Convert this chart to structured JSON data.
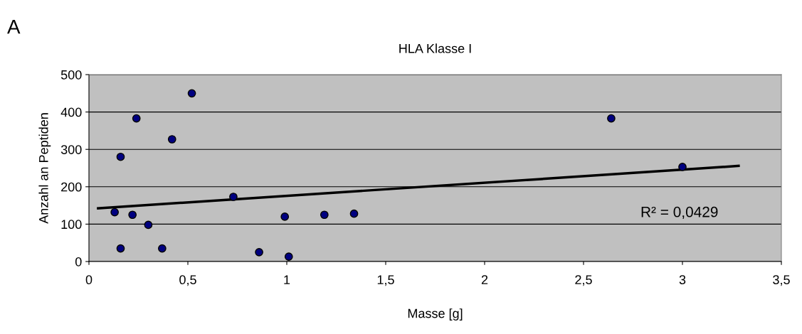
{
  "chart_data": {
    "type": "scatter",
    "title": "HLA Klasse I",
    "xlabel": "Masse [g]",
    "ylabel": "Anzahl an Peptiden",
    "annotations": [
      "A",
      "R² = 0,0429"
    ],
    "series": [
      {
        "color": "#000080",
        "marker": "circle",
        "x": [
          0.13,
          0.16,
          0.16,
          0.24,
          0.22,
          0.3,
          0.37,
          0.42,
          0.52,
          0.73,
          0.86,
          0.99,
          1.01,
          1.19,
          1.34,
          2.64,
          3.0
        ],
        "values": [
          132,
          280,
          35,
          383,
          125,
          98,
          35,
          327,
          450,
          173,
          25,
          120,
          13,
          125,
          128,
          383,
          253
        ]
      },
      {
        "type": "line",
        "color": "#000000",
        "marker": "none",
        "x": [
          0.04,
          3.29
        ],
        "values": [
          142,
          256
        ]
      }
    ],
    "xlim": [
      0,
      3.5
    ],
    "ylim": [
      0,
      500
    ],
    "xticks": [
      0,
      {
        "value": 0.5,
        "label": "0,5"
      },
      1,
      {
        "value": 1.5,
        "label": "1,5"
      },
      2,
      {
        "value": 2.5,
        "label": "2,5"
      },
      3,
      {
        "value": 3.5,
        "label": "3,5"
      }
    ],
    "yticks": [
      0,
      100,
      200,
      300,
      400,
      500
    ],
    "grid": "y"
  }
}
